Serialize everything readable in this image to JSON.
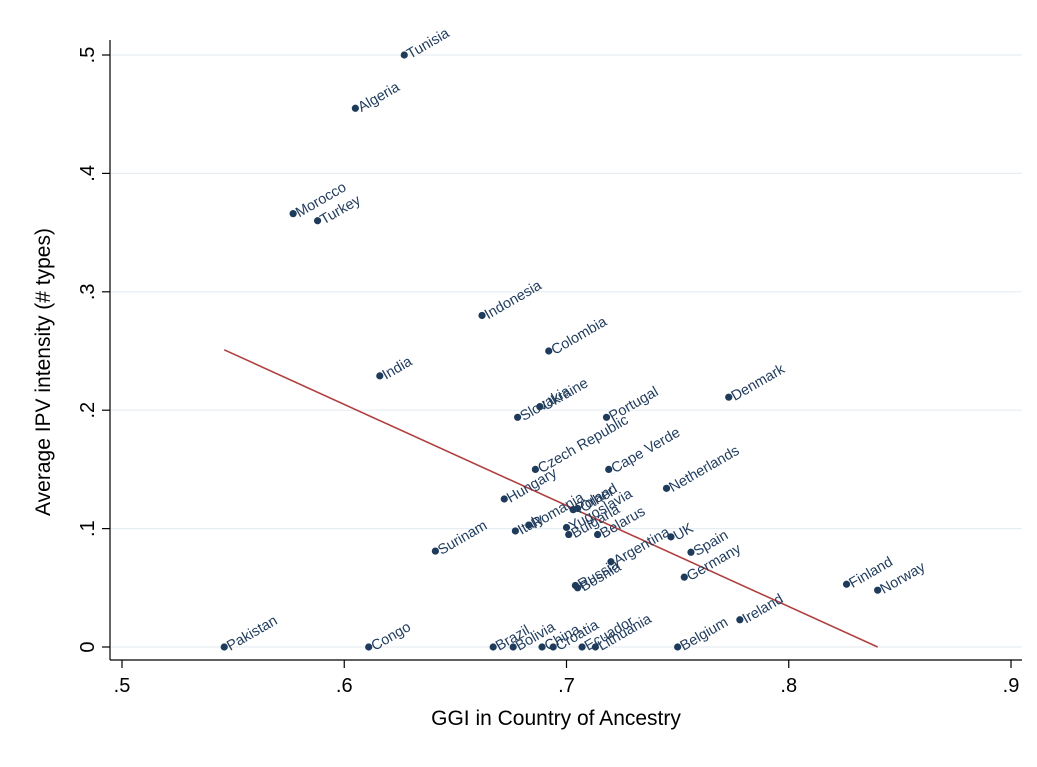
{
  "chart_data": {
    "type": "scatter",
    "xlabel": "GGI in Country of Ancestry",
    "ylabel": "Average IPV intensity (# types)",
    "xlim": [
      0.5,
      0.9
    ],
    "ylim": [
      0,
      0.5
    ],
    "xticks": [
      {
        "value": 0.5,
        "label": ".5"
      },
      {
        "value": 0.6,
        "label": ".6"
      },
      {
        "value": 0.7,
        "label": ".7"
      },
      {
        "value": 0.8,
        "label": ".8"
      },
      {
        "value": 0.9,
        "label": ".9"
      }
    ],
    "yticks": [
      {
        "value": 0,
        "label": "0"
      },
      {
        "value": 0.1,
        "label": ".1"
      },
      {
        "value": 0.2,
        "label": ".2"
      },
      {
        "value": 0.3,
        "label": ".3"
      },
      {
        "value": 0.4,
        "label": ".4"
      },
      {
        "value": 0.5,
        "label": ".5"
      }
    ],
    "grid": "horizontal",
    "marker_color": "#1f3b5c",
    "label_color": "#1f3b5c",
    "fit_line_color": "#b04040",
    "points": [
      {
        "label": "Tunisia",
        "x": 0.627,
        "y": 0.5
      },
      {
        "label": "Algeria",
        "x": 0.605,
        "y": 0.455
      },
      {
        "label": "Morocco",
        "x": 0.577,
        "y": 0.366
      },
      {
        "label": "Turkey",
        "x": 0.588,
        "y": 0.36
      },
      {
        "label": "Indonesia",
        "x": 0.662,
        "y": 0.28
      },
      {
        "label": "Colombia",
        "x": 0.692,
        "y": 0.25
      },
      {
        "label": "India",
        "x": 0.616,
        "y": 0.229
      },
      {
        "label": "Denmark",
        "x": 0.773,
        "y": 0.211
      },
      {
        "label": "Slovakia",
        "x": 0.678,
        "y": 0.194
      },
      {
        "label": "Ukraine",
        "x": 0.688,
        "y": 0.203
      },
      {
        "label": "Portugal",
        "x": 0.718,
        "y": 0.194
      },
      {
        "label": "Czech Republic",
        "x": 0.686,
        "y": 0.15
      },
      {
        "label": "Cape Verde",
        "x": 0.719,
        "y": 0.15
      },
      {
        "label": "Netherlands",
        "x": 0.745,
        "y": 0.134
      },
      {
        "label": "Hungary",
        "x": 0.672,
        "y": 0.125
      },
      {
        "label": "Poland",
        "x": 0.703,
        "y": 0.116
      },
      {
        "label": "Other",
        "x": 0.705,
        "y": 0.117
      },
      {
        "label": "Romania",
        "x": 0.683,
        "y": 0.103
      },
      {
        "label": "Italy",
        "x": 0.677,
        "y": 0.098
      },
      {
        "label": "Yugoslavia",
        "x": 0.7,
        "y": 0.101
      },
      {
        "label": "Bulgaria",
        "x": 0.701,
        "y": 0.095
      },
      {
        "label": "Belarus",
        "x": 0.714,
        "y": 0.095
      },
      {
        "label": "Argentina",
        "x": 0.72,
        "y": 0.072
      },
      {
        "label": "UK",
        "x": 0.747,
        "y": 0.093
      },
      {
        "label": "Surinam",
        "x": 0.641,
        "y": 0.081
      },
      {
        "label": "Spain",
        "x": 0.756,
        "y": 0.08
      },
      {
        "label": "Russia",
        "x": 0.704,
        "y": 0.052
      },
      {
        "label": "Bosnia",
        "x": 0.705,
        "y": 0.05
      },
      {
        "label": "Germany",
        "x": 0.753,
        "y": 0.059
      },
      {
        "label": "Finland",
        "x": 0.826,
        "y": 0.053
      },
      {
        "label": "Norway",
        "x": 0.84,
        "y": 0.048
      },
      {
        "label": "Ireland",
        "x": 0.778,
        "y": 0.023
      },
      {
        "label": "Pakistan",
        "x": 0.546,
        "y": 0.0
      },
      {
        "label": "Congo",
        "x": 0.611,
        "y": 0.0
      },
      {
        "label": "Brazil",
        "x": 0.667,
        "y": 0.0
      },
      {
        "label": "Bolivia",
        "x": 0.676,
        "y": 0.0
      },
      {
        "label": "China",
        "x": 0.689,
        "y": 0.0
      },
      {
        "label": "Croatia",
        "x": 0.694,
        "y": 0.0
      },
      {
        "label": "Ecuador",
        "x": 0.707,
        "y": 0.0
      },
      {
        "label": "Lithuania",
        "x": 0.713,
        "y": 0.0
      },
      {
        "label": "Belgium",
        "x": 0.75,
        "y": 0.0
      }
    ],
    "fit_line": {
      "x": [
        0.546,
        0.84
      ],
      "y": [
        0.251,
        0.0
      ]
    }
  }
}
